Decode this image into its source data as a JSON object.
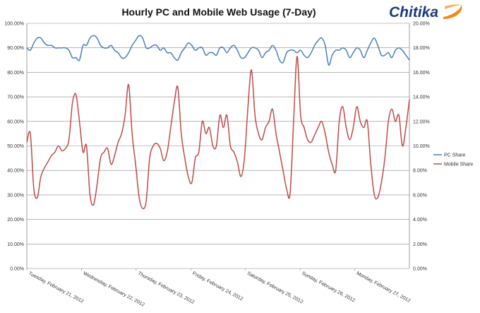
{
  "chart_data": {
    "type": "line",
    "title": "Hourly PC and Mobile Web Usage (7-Day)",
    "brand": "Chitika",
    "colors": {
      "pc": "#4a7ebb",
      "mobile": "#be4b48",
      "grid": "#8c8c8c",
      "logo_accent": "#f08a1c"
    },
    "x_labels": [
      "Tuesday, February 21, 2012",
      "Wednesday, February 22, 2012",
      "Thursday, February 23, 2012",
      "Friday, February 24, 2012",
      "Saturday, February 25, 2012",
      "Sunday, February 26, 2012",
      "Monday, February 27, 2012"
    ],
    "y_left": {
      "min": 0,
      "max": 100,
      "ticks": [
        "0.00%",
        "10.00%",
        "20.00%",
        "30.00%",
        "40.00%",
        "50.00%",
        "60.00%",
        "70.00%",
        "80.00%",
        "90.00%",
        "100.00%"
      ]
    },
    "y_right": {
      "min": 0,
      "max": 20,
      "ticks": [
        "0.00%",
        "2.00%",
        "4.00%",
        "6.00%",
        "8.00%",
        "10.00%",
        "12.00%",
        "14.00%",
        "16.00%",
        "18.00%",
        "20.00%"
      ]
    },
    "legend_position": "right",
    "grid": true,
    "series": [
      {
        "name": "PC Share",
        "axis": "left",
        "values": [
          90,
          89,
          92,
          94,
          94,
          92,
          91,
          91,
          90,
          90,
          90,
          90,
          89,
          86,
          86,
          85,
          91,
          91,
          94,
          95,
          94,
          91,
          90,
          90,
          91,
          89,
          88,
          86,
          86,
          88,
          91,
          93,
          95,
          94,
          90,
          90,
          91,
          91,
          89,
          90,
          88,
          88,
          86,
          85,
          88,
          90,
          92,
          91,
          89,
          90,
          90,
          87,
          88,
          88,
          87,
          90,
          90,
          88,
          90,
          91,
          89,
          86,
          86,
          88,
          90,
          90,
          89,
          86,
          88,
          89,
          91,
          89,
          85,
          84,
          88,
          89,
          89,
          88,
          89,
          87,
          86,
          88,
          91,
          93,
          94,
          91,
          83,
          87,
          89,
          89,
          90,
          89,
          86,
          88,
          90,
          89,
          86,
          89,
          92,
          94,
          91,
          87,
          87,
          88,
          86,
          89,
          90,
          89,
          87,
          85
        ]
      },
      {
        "name": "Mobile Share",
        "axis": "right",
        "values": [
          10.3,
          11,
          6.5,
          5.8,
          7.5,
          8.2,
          8.7,
          9.2,
          9.5,
          10,
          9.6,
          9.8,
          10.5,
          13.5,
          14.2,
          12,
          9.5,
          10,
          6,
          5.2,
          6.8,
          9,
          9.5,
          9.8,
          8.5,
          9.2,
          10.3,
          11,
          12.5,
          15,
          11,
          8.5,
          5.8,
          4.9,
          5.5,
          9,
          10,
          10.2,
          9.8,
          8.8,
          9.5,
          11.5,
          13.5,
          14.8,
          11,
          9,
          7.5,
          7,
          9,
          9.5,
          12,
          11,
          11.5,
          10,
          10,
          12.5,
          11.5,
          12.5,
          10,
          9.5,
          8.7,
          7.5,
          9,
          13.2,
          16.2,
          12.5,
          11,
          10.5,
          11.5,
          12,
          13,
          11,
          9.5,
          8,
          6.5,
          6.1,
          12,
          17.3,
          12.5,
          11.5,
          10.5,
          10.3,
          10.9,
          11.5,
          12,
          11,
          9.5,
          8.5,
          8,
          12,
          13.2,
          11.5,
          10.5,
          11.5,
          13.2,
          12,
          11.5,
          12,
          8.5,
          6,
          5.8,
          7,
          9,
          12,
          13,
          12,
          12.5,
          10,
          11.5,
          13.8
        ]
      }
    ]
  }
}
